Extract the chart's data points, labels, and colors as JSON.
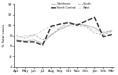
{
  "months": [
    "Apr",
    "May",
    "Jun",
    "Jul",
    "Aug",
    "Sep",
    "Oct",
    "Nov",
    "Dec",
    "Jan",
    "Feb",
    "Mar"
  ],
  "northeast": [
    7.2,
    7.0,
    7.2,
    6.5,
    8.2,
    9.2,
    10.0,
    10.2,
    10.0,
    9.5,
    8.5,
    9.0
  ],
  "north_central": [
    7.0,
    6.8,
    6.8,
    6.2,
    9.8,
    10.2,
    10.5,
    10.0,
    10.8,
    11.5,
    7.8,
    8.2
  ],
  "south": [
    8.0,
    7.5,
    8.2,
    7.2,
    8.0,
    9.5,
    10.5,
    10.2,
    9.8,
    8.5,
    8.2,
    8.8
  ],
  "west": [
    7.5,
    8.0,
    8.0,
    9.0,
    9.8,
    9.2,
    9.8,
    9.8,
    9.8,
    9.0,
    8.8,
    8.8
  ],
  "ylim": [
    2,
    14
  ],
  "yticks": [
    2,
    4,
    6,
    8,
    10,
    12,
    14
  ],
  "ytick_labels": [
    "2",
    "4",
    "6",
    "8",
    "10",
    "12",
    "14"
  ],
  "northeast_color": "#aaaaaa",
  "north_central_color": "#222222",
  "south_color": "#777777",
  "west_color": "#cccccc",
  "ylabel": "% Total cases",
  "background": "#ffffff",
  "figwidth": 1.5,
  "figheight": 0.96,
  "dpi": 100
}
